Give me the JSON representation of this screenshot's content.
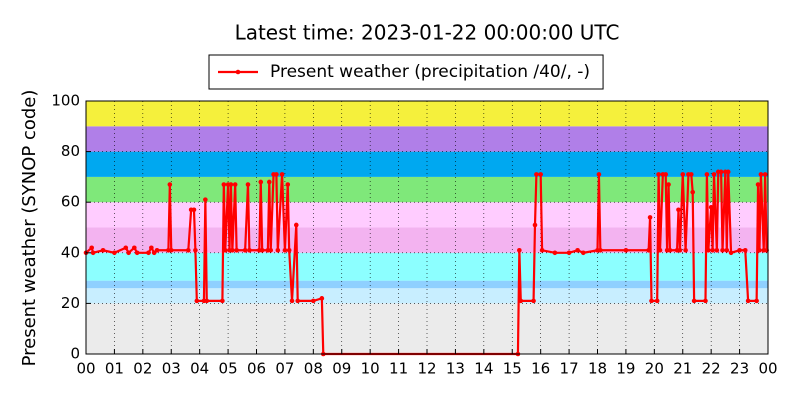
{
  "chart_data": {
    "type": "line",
    "title": "Latest time: 2023-01-22 00:00:00 UTC",
    "y_label": "Present weather (SYNOP code)",
    "legend_position": "upper center",
    "grid": true,
    "xlim": [
      0,
      24
    ],
    "ylim": [
      0,
      100
    ],
    "yticks": [
      0,
      20,
      40,
      60,
      80,
      100
    ],
    "xticks": [
      {
        "value": 0,
        "label": "00"
      },
      {
        "value": 1,
        "label": "01"
      },
      {
        "value": 2,
        "label": "02"
      },
      {
        "value": 3,
        "label": "03"
      },
      {
        "value": 4,
        "label": "04"
      },
      {
        "value": 5,
        "label": "05"
      },
      {
        "value": 6,
        "label": "06"
      },
      {
        "value": 7,
        "label": "07"
      },
      {
        "value": 8,
        "label": "08"
      },
      {
        "value": 9,
        "label": "09"
      },
      {
        "value": 10,
        "label": "10"
      },
      {
        "value": 11,
        "label": "11"
      },
      {
        "value": 12,
        "label": "12"
      },
      {
        "value": 13,
        "label": "13"
      },
      {
        "value": 14,
        "label": "14"
      },
      {
        "value": 15,
        "label": "15"
      },
      {
        "value": 16,
        "label": "16"
      },
      {
        "value": 17,
        "label": "17"
      },
      {
        "value": 18,
        "label": "18"
      },
      {
        "value": 19,
        "label": "19"
      },
      {
        "value": 20,
        "label": "20"
      },
      {
        "value": 21,
        "label": "21"
      },
      {
        "value": 22,
        "label": "22"
      },
      {
        "value": 23,
        "label": "23"
      },
      {
        "value": 24,
        "label": "00"
      }
    ],
    "bands": [
      {
        "from": 0,
        "to": 20,
        "color": "#ebebeb"
      },
      {
        "from": 20,
        "to": 26,
        "color": "#c8eeff"
      },
      {
        "from": 26,
        "to": 29,
        "color": "#8fd0ff"
      },
      {
        "from": 29,
        "to": 40,
        "color": "#8cffff"
      },
      {
        "from": 40,
        "to": 50,
        "color": "#f3b3f0"
      },
      {
        "from": 50,
        "to": 60,
        "color": "#ffccff"
      },
      {
        "from": 60,
        "to": 70,
        "color": "#7fe87a"
      },
      {
        "from": 70,
        "to": 80,
        "color": "#00a8f0"
      },
      {
        "from": 80,
        "to": 90,
        "color": "#b07fe8"
      },
      {
        "from": 90,
        "to": 100,
        "color": "#f5f03c"
      }
    ],
    "series": [
      {
        "name": "Present weather (precipitation /40/, -)",
        "color": "#ff0000",
        "x": [
          0.0,
          0.2,
          0.25,
          0.6,
          1.0,
          1.4,
          1.5,
          1.7,
          1.8,
          2.2,
          2.3,
          2.4,
          2.5,
          2.9,
          2.95,
          3.0,
          3.6,
          3.7,
          3.8,
          3.85,
          3.9,
          4.15,
          4.2,
          4.25,
          4.8,
          4.85,
          4.9,
          5.0,
          5.05,
          5.1,
          5.15,
          5.25,
          5.3,
          5.6,
          5.7,
          5.75,
          6.1,
          6.15,
          6.2,
          6.4,
          6.45,
          6.5,
          6.6,
          6.7,
          6.75,
          6.9,
          7.0,
          7.1,
          7.15,
          7.25,
          7.4,
          7.45,
          8.0,
          8.3,
          8.35,
          15.2,
          15.25,
          15.3,
          15.75,
          15.8,
          15.85,
          16.0,
          16.05,
          16.5,
          17.0,
          17.3,
          17.5,
          18.0,
          18.05,
          18.1,
          19.0,
          19.8,
          19.85,
          19.9,
          20.1,
          20.15,
          20.2,
          20.3,
          20.4,
          20.45,
          20.5,
          20.55,
          20.8,
          20.85,
          20.9,
          21.0,
          21.1,
          21.2,
          21.3,
          21.35,
          21.4,
          21.8,
          21.85,
          21.9,
          22.0,
          22.05,
          22.1,
          22.2,
          22.25,
          22.35,
          22.4,
          22.5,
          22.55,
          22.6,
          22.7,
          23.0,
          23.2,
          23.3,
          23.6,
          23.65,
          23.7,
          23.75,
          23.85,
          23.9,
          23.95
        ],
        "values": [
          40,
          42,
          40,
          41,
          40,
          42,
          40,
          42,
          40,
          40,
          42,
          40,
          41,
          41,
          67,
          41,
          41,
          57,
          57,
          41,
          21,
          21,
          61,
          21,
          21,
          67,
          41,
          67,
          41,
          67,
          41,
          67,
          41,
          41,
          67,
          41,
          41,
          68,
          41,
          41,
          68,
          41,
          71,
          71,
          41,
          71,
          41,
          67,
          41,
          21,
          51,
          21,
          21,
          22,
          0,
          0,
          41,
          21,
          21,
          51,
          71,
          71,
          41,
          40,
          40,
          41,
          40,
          41,
          71,
          41,
          41,
          41,
          54,
          21,
          21,
          71,
          41,
          71,
          71,
          41,
          67,
          41,
          41,
          57,
          41,
          71,
          41,
          71,
          71,
          64,
          21,
          21,
          71,
          41,
          58,
          41,
          71,
          41,
          72,
          72,
          41,
          72,
          41,
          72,
          40,
          41,
          41,
          21,
          21,
          67,
          41,
          71,
          41,
          71,
          41
        ]
      }
    ]
  }
}
